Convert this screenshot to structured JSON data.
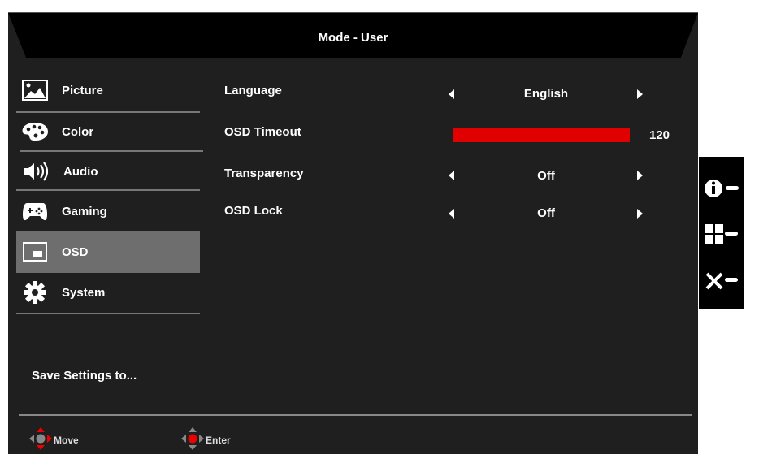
{
  "header": {
    "title": "Mode - User"
  },
  "sidebar": {
    "items": [
      {
        "label": "Picture",
        "icon": "picture-icon"
      },
      {
        "label": "Color",
        "icon": "palette-icon"
      },
      {
        "label": "Audio",
        "icon": "speaker-icon"
      },
      {
        "label": "Gaming",
        "icon": "gamepad-icon"
      },
      {
        "label": "OSD",
        "icon": "osd-icon",
        "selected": true
      },
      {
        "label": "System",
        "icon": "gear-icon"
      }
    ],
    "save_label": "Save Settings to..."
  },
  "options": [
    {
      "label": "Language",
      "value": "English"
    },
    {
      "label": "OSD Timeout",
      "value": "120",
      "max": 120
    },
    {
      "label": "Transparency",
      "value": "Off"
    },
    {
      "label": "OSD Lock",
      "value": "Off"
    }
  ],
  "footer": {
    "move": "Move",
    "enter": "Enter"
  },
  "side_keys": [
    "info-icon",
    "menu-grid-icon",
    "close-icon"
  ],
  "colors": {
    "accent": "#e00000",
    "selected": "#6e6e6e",
    "background": "#1f1f1f"
  }
}
